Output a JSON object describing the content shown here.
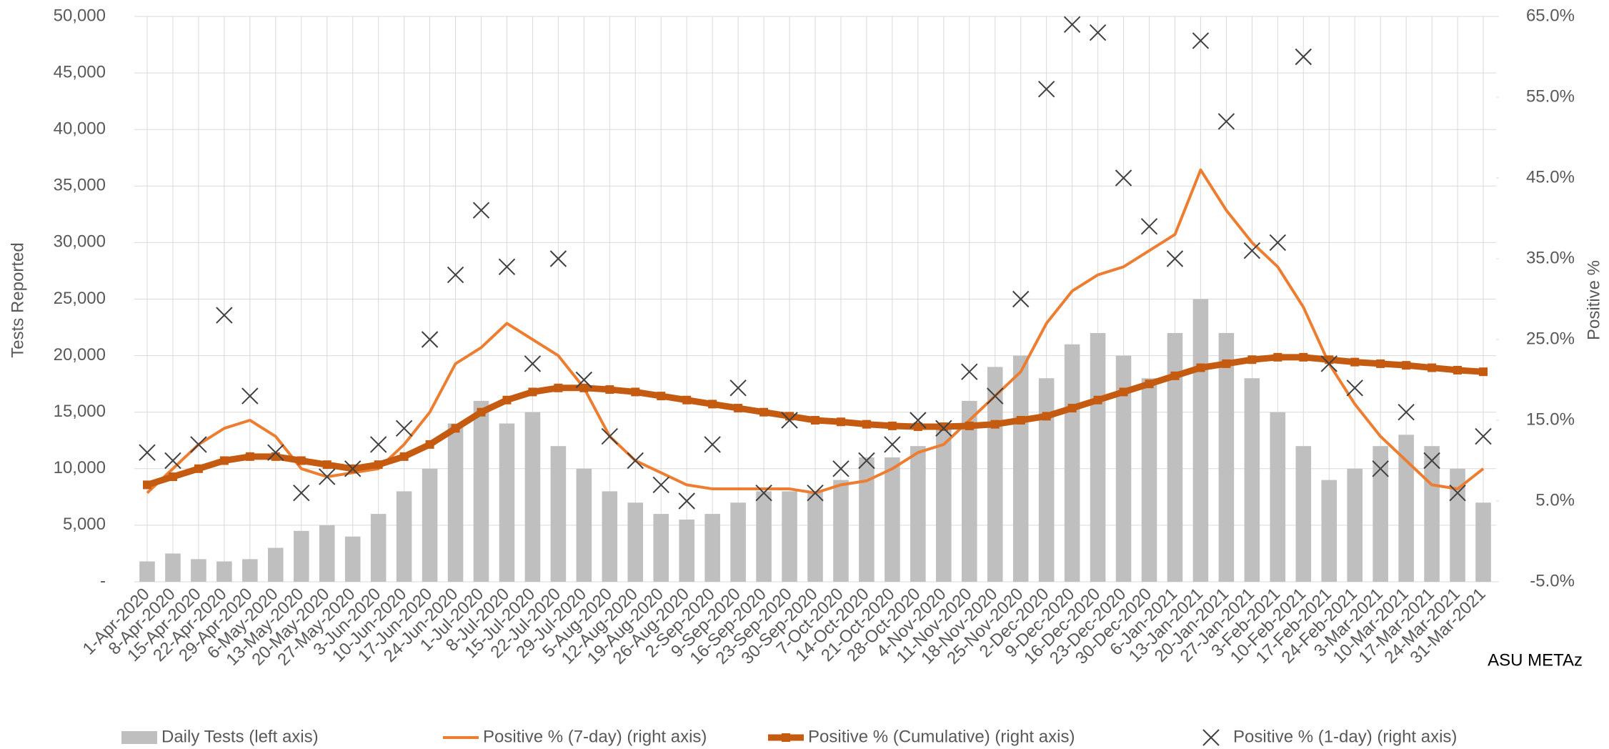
{
  "chart_data": {
    "type": "combo",
    "credit": "ASU METAz",
    "y_label": "Tests Reported",
    "y2_label": "Positive %",
    "categories": [
      "1-Apr-2020",
      "8-Apr-2020",
      "15-Apr-2020",
      "22-Apr-2020",
      "29-Apr-2020",
      "6-May-2020",
      "13-May-2020",
      "20-May-2020",
      "27-May-2020",
      "3-Jun-2020",
      "10-Jun-2020",
      "17-Jun-2020",
      "24-Jun-2020",
      "1-Jul-2020",
      "8-Jul-2020",
      "15-Jul-2020",
      "22-Jul-2020",
      "29-Jul-2020",
      "5-Aug-2020",
      "12-Aug-2020",
      "19-Aug-2020",
      "26-Aug-2020",
      "2-Sep-2020",
      "9-Sep-2020",
      "16-Sep-2020",
      "23-Sep-2020",
      "30-Sep-2020",
      "7-Oct-2020",
      "14-Oct-2020",
      "21-Oct-2020",
      "28-Oct-2020",
      "4-Nov-2020",
      "11-Nov-2020",
      "18-Nov-2020",
      "25-Nov-2020",
      "2-Dec-2020",
      "9-Dec-2020",
      "16-Dec-2020",
      "23-Dec-2020",
      "30-Dec-2020",
      "6-Jan-2021",
      "13-Jan-2021",
      "20-Jan-2021",
      "27-Jan-2021",
      "3-Feb-2021",
      "10-Feb-2021",
      "17-Feb-2021",
      "24-Feb-2021",
      "3-Mar-2021",
      "10-Mar-2021",
      "17-Mar-2021",
      "24-Mar-2021",
      "31-Mar-2021"
    ],
    "series": [
      {
        "name": "Daily Tests (left axis)",
        "kind": "bar",
        "color": "#bfbfbf",
        "values": [
          1800,
          2500,
          2000,
          1800,
          2000,
          3000,
          4500,
          5000,
          4000,
          6000,
          8000,
          10000,
          14000,
          16000,
          14000,
          15000,
          12000,
          10000,
          8000,
          7000,
          6000,
          5500,
          6000,
          7000,
          8000,
          8000,
          8000,
          9000,
          11000,
          11000,
          12000,
          14000,
          16000,
          19000,
          20000,
          18000,
          21000,
          22000,
          20000,
          18000,
          22000,
          25000,
          22000,
          18000,
          15000,
          12000,
          9000,
          10000,
          12000,
          13000,
          12000,
          10000,
          7000
        ]
      },
      {
        "name": "Positive % (7-day) (right axis)",
        "kind": "line",
        "axis": "y2",
        "color": "#ed7d31",
        "values": [
          6,
          9,
          12,
          14,
          15,
          13,
          9,
          8,
          8.5,
          9,
          12,
          16,
          22,
          24,
          27,
          25,
          23,
          19,
          13,
          10,
          8.5,
          7,
          6.5,
          6.5,
          6.5,
          6.5,
          6,
          7,
          7.5,
          9,
          11,
          12,
          15,
          18,
          21,
          27,
          31,
          33,
          34,
          36,
          38,
          46,
          41,
          37,
          34,
          29,
          22,
          17,
          13,
          10,
          7,
          6.5,
          9
        ]
      },
      {
        "name": "Positive % (Cumulative) (right axis)",
        "kind": "marker-line",
        "axis": "y2",
        "color": "#c55a11",
        "values": [
          7,
          8,
          9,
          10,
          10.5,
          10.5,
          10,
          9.5,
          9,
          9.5,
          10.5,
          12,
          14,
          16,
          17.5,
          18.5,
          19,
          19,
          18.8,
          18.5,
          18,
          17.5,
          17,
          16.5,
          16,
          15.5,
          15,
          14.8,
          14.5,
          14.3,
          14.2,
          14.2,
          14.3,
          14.5,
          15,
          15.5,
          16.5,
          17.5,
          18.5,
          19.5,
          20.5,
          21.5,
          22,
          22.5,
          22.8,
          22.8,
          22.5,
          22.2,
          22,
          21.8,
          21.5,
          21.2,
          21
        ]
      },
      {
        "name": "Positive % (1-day) (right axis)",
        "kind": "x-marker",
        "axis": "y2",
        "color": "#404040",
        "values": [
          11,
          10,
          12,
          28,
          18,
          11,
          6,
          8,
          9,
          12,
          14,
          25,
          33,
          41,
          34,
          22,
          35,
          20,
          13,
          10,
          7,
          5,
          12,
          19,
          6,
          15,
          6,
          9,
          10,
          12,
          15,
          14,
          21,
          18,
          30,
          56,
          64,
          63,
          45,
          39,
          35,
          62,
          52,
          36,
          37,
          60,
          22,
          19,
          9,
          16,
          10,
          6,
          13
        ]
      }
    ],
    "ylim": [
      0,
      50000
    ],
    "yticks": [
      {
        "value": 0,
        "label": "-"
      },
      {
        "value": 5000,
        "label": "5,000"
      },
      {
        "value": 10000,
        "label": "10,000"
      },
      {
        "value": 15000,
        "label": "15,000"
      },
      {
        "value": 20000,
        "label": "20,000"
      },
      {
        "value": 25000,
        "label": "25,000"
      },
      {
        "value": 30000,
        "label": "30,000"
      },
      {
        "value": 35000,
        "label": "35,000"
      },
      {
        "value": 40000,
        "label": "40,000"
      },
      {
        "value": 45000,
        "label": "45,000"
      },
      {
        "value": 50000,
        "label": "50,000"
      }
    ],
    "y2lim": [
      -5,
      65
    ],
    "y2ticks": [
      {
        "value": -5,
        "label": "-5.0%"
      },
      {
        "value": 5,
        "label": "5.0%"
      },
      {
        "value": 15,
        "label": "15.0%"
      },
      {
        "value": 25,
        "label": "25.0%"
      },
      {
        "value": 35,
        "label": "35.0%"
      },
      {
        "value": 45,
        "label": "45.0%"
      },
      {
        "value": 55,
        "label": "55.0%"
      },
      {
        "value": 65,
        "label": "65.0%"
      }
    ],
    "grid": true
  }
}
